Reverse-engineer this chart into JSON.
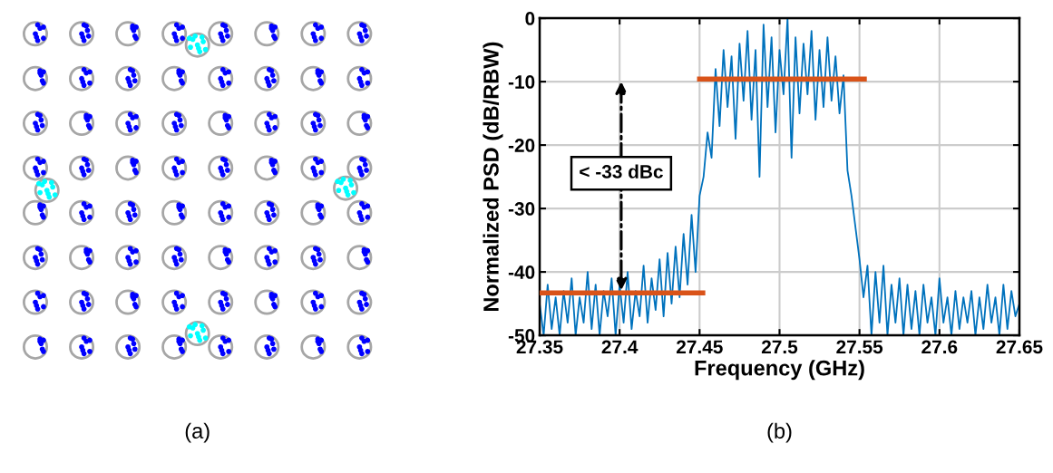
{
  "chart_data": [
    {
      "type": "other",
      "title": "(a)"
    },
    {
      "type": "line",
      "title": "(b)",
      "xlabel": "Frequency (GHz)",
      "ylabel": "Normalized PSD (dB/RBW)",
      "xlim": [
        27.35,
        27.65
      ],
      "ylim": [
        -50,
        0
      ],
      "xticks": [
        27.35,
        27.4,
        27.45,
        27.5,
        27.55,
        27.6,
        27.65
      ],
      "yticks": [
        -50,
        -40,
        -30,
        -20,
        -10,
        0
      ],
      "grid": true,
      "annotations": [
        "< -33 dBc"
      ],
      "series": [
        {
          "color": "#0072bd",
          "x": [
            27.35,
            27.3525,
            27.355,
            27.3575,
            27.36,
            27.3625,
            27.365,
            27.3675,
            27.37,
            27.3725,
            27.375,
            27.3775,
            27.38,
            27.3825,
            27.385,
            27.3875,
            27.39,
            27.3925,
            27.395,
            27.3975,
            27.4,
            27.4025,
            27.405,
            27.4075,
            27.41,
            27.4125,
            27.415,
            27.4175,
            27.42,
            27.4225,
            27.425,
            27.4275,
            27.43,
            27.4325,
            27.435,
            27.4375,
            27.44,
            27.4425,
            27.445,
            27.4475,
            27.45,
            27.4525,
            27.455,
            27.4575,
            27.46,
            27.4625,
            27.465,
            27.4675,
            27.47,
            27.4725,
            27.475,
            27.4775,
            27.48,
            27.4825,
            27.485,
            27.4875,
            27.49,
            27.4925,
            27.495,
            27.4975,
            27.5,
            27.5025,
            27.505,
            27.5075,
            27.51,
            27.5125,
            27.515,
            27.5175,
            27.52,
            27.5225,
            27.525,
            27.5275,
            27.53,
            27.5325,
            27.535,
            27.5375,
            27.54,
            27.5425,
            27.545,
            27.5475,
            27.55,
            27.5525,
            27.555,
            27.5575,
            27.56,
            27.5625,
            27.565,
            27.5675,
            27.57,
            27.5725,
            27.575,
            27.5775,
            27.58,
            27.5825,
            27.585,
            27.5875,
            27.59,
            27.5925,
            27.595,
            27.5975,
            27.6,
            27.6025,
            27.605,
            27.6075,
            27.61,
            27.6125,
            27.615,
            27.6175,
            27.62,
            27.6225,
            27.625,
            27.6275,
            27.63,
            27.6325,
            27.635,
            27.6375,
            27.64,
            27.6425,
            27.645,
            27.6475,
            27.65
          ],
          "values": [
            -45,
            -50,
            -42,
            -49,
            -44,
            -50,
            -43,
            -48,
            -41,
            -50,
            -44,
            -48,
            -40,
            -49,
            -42,
            -50,
            -43,
            -47,
            -41,
            -50,
            -42,
            -48,
            -40,
            -49,
            -43,
            -47,
            -39,
            -48,
            -41,
            -46,
            -38,
            -47,
            -37,
            -45,
            -36,
            -44,
            -34,
            -42,
            -31,
            -40,
            -28,
            -25,
            -18,
            -22,
            -8,
            -17,
            -5,
            -14,
            -6,
            -19,
            -4,
            -13,
            -2,
            -16,
            -5,
            -25,
            -1,
            -14,
            -3,
            -18,
            -5,
            -12,
            0,
            -22,
            -3,
            -15,
            -4,
            -12,
            -2,
            -16,
            -5,
            -14,
            -3,
            -13,
            -6,
            -15,
            -9,
            -24,
            -28,
            -33,
            -38,
            -44,
            -39,
            -50,
            -40,
            -48,
            -39,
            -50,
            -42,
            -48,
            -41,
            -50,
            -42,
            -49,
            -43,
            -50,
            -42,
            -48,
            -44,
            -50,
            -41,
            -48,
            -44,
            -50,
            -43,
            -49,
            -44,
            -48,
            -43,
            -50,
            -44,
            -49,
            -42,
            -48,
            -44,
            -50,
            -42,
            -49,
            -43,
            -47,
            -45
          ]
        },
        {
          "color": "#d95319",
          "x": [
            27.35,
            27.452
          ],
          "values": [
            -43.3,
            -43.3
          ]
        },
        {
          "color": "#d95319",
          "x": [
            27.45,
            27.553
          ],
          "values": [
            -9.6,
            -9.6
          ]
        }
      ]
    }
  ]
}
